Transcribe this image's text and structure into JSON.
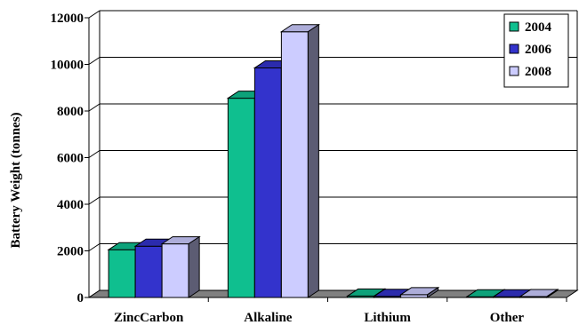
{
  "chart_data": {
    "type": "bar",
    "title": "",
    "xlabel": "",
    "ylabel": "Battery Weight (tonnes)",
    "ylim": [
      0,
      12000
    ],
    "yticks": [
      0,
      2000,
      4000,
      6000,
      8000,
      10000,
      12000
    ],
    "ytick_labels": [
      "0",
      "2000",
      "4000",
      "6000",
      "8000",
      "10000",
      "12000"
    ],
    "categories": [
      "ZincCarbon",
      "Alkaline",
      "Lithium",
      "Other"
    ],
    "series": [
      {
        "name": "2004",
        "color": "#0fbf8f",
        "values": [
          2050,
          8550,
          60,
          30
        ]
      },
      {
        "name": "2006",
        "color": "#3333cc",
        "values": [
          2200,
          9850,
          50,
          30
        ]
      },
      {
        "name": "2008",
        "color": "#ccccff",
        "values": [
          2300,
          11400,
          120,
          40
        ]
      }
    ],
    "grid": true,
    "legend_position": "top-right",
    "style": "3d-clustered-column"
  }
}
